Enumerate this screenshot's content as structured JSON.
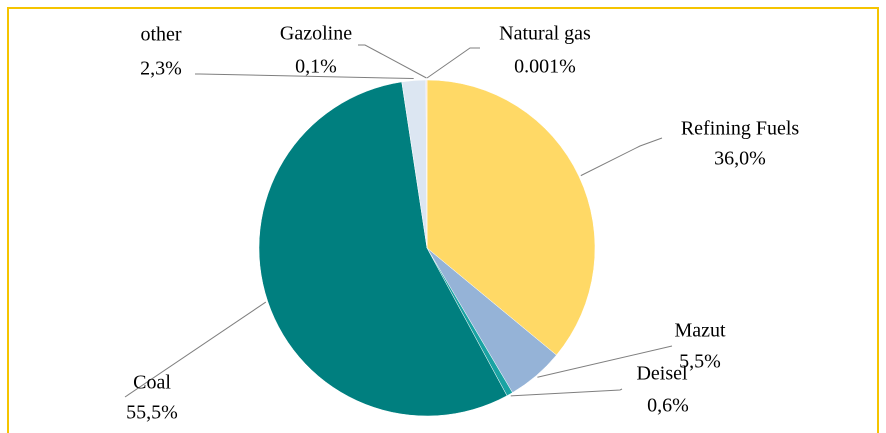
{
  "chart_data": {
    "type": "pie",
    "categories": [
      "Natural gas",
      "Refining Fuels",
      "Mazut",
      "Deisel",
      "Coal",
      "other",
      "Gazoline"
    ],
    "values": [
      0.001,
      36.0,
      5.5,
      0.6,
      55.5,
      2.3,
      0.1
    ],
    "value_labels": [
      "0.001%",
      "36,0%",
      "5,5%",
      "0,6%",
      "55,5%",
      "2,3%",
      "0,1%"
    ],
    "colors": [
      "#c0504d",
      "#ffd966",
      "#95b3d7",
      "#1aa3a3",
      "#007f7f",
      "#dce6f2",
      "#f2dcdb"
    ]
  }
}
